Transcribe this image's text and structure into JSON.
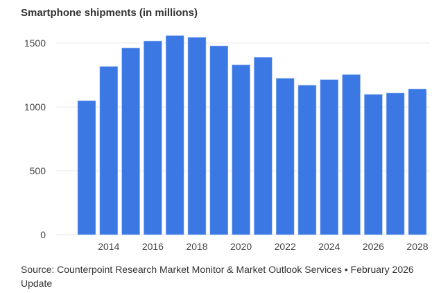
{
  "chart_data": {
    "type": "bar",
    "title": "Smartphone shipments (in millions)",
    "xlabel": "",
    "ylabel": "",
    "categories": [
      "2013",
      "2014",
      "2015",
      "2016",
      "2017",
      "2018",
      "2019",
      "2020",
      "2021",
      "2022",
      "2023",
      "2024",
      "2025",
      "2026",
      "2027",
      "2028"
    ],
    "values": [
      1049,
      1317,
      1462,
      1516,
      1558,
      1545,
      1478,
      1329,
      1389,
      1224,
      1170,
      1214,
      1253,
      1098,
      1109,
      1141
    ],
    "x_tick_labels": [
      "2014",
      "2016",
      "2018",
      "2020",
      "2022",
      "2024",
      "2026",
      "2028"
    ],
    "y_ticks": [
      0,
      500,
      1000,
      1500
    ],
    "y_tick_labels": [
      "0",
      "500",
      "1000",
      "1500"
    ],
    "ylim": [
      0,
      1650
    ],
    "grid": true,
    "bar_color": "#3c78e4"
  },
  "source": "Source: Counterpoint Research Market Monitor & Market Outlook Services • February 2026 Update"
}
